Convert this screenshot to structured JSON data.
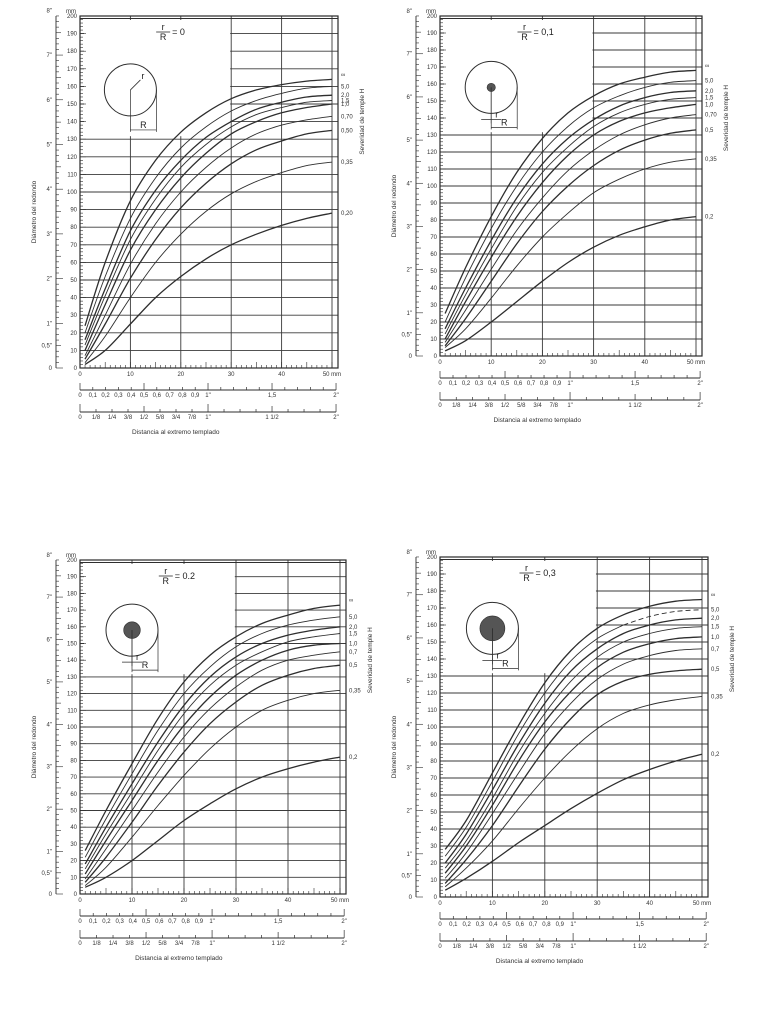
{
  "chart_data": [
    {
      "type": "line",
      "title": "r/R = 0",
      "ratio_label": "r/R = 0",
      "inset": {
        "core_radius_fraction": 0
      },
      "xlabel": "Distancia al extremo templado",
      "ylabel": "Diámetro del redondo",
      "right_label": "Severidad de temple H",
      "x_unit": "mm",
      "y_unit": "mm",
      "xlim": [
        0,
        50
      ],
      "ylim": [
        0,
        200
      ],
      "x_ticks": [
        0,
        10,
        20,
        30,
        40,
        50
      ],
      "x_tick_labels": [
        "0",
        "10",
        "20",
        "30",
        "40",
        "50 mm"
      ],
      "y_ticks": [
        0,
        10,
        20,
        30,
        40,
        50,
        60,
        70,
        80,
        90,
        100,
        110,
        120,
        130,
        140,
        150,
        160,
        170,
        180,
        190,
        200
      ],
      "y_inch_labels": [
        "0",
        "0,5\"",
        "1\"",
        "2\"",
        "3\"",
        "4\"",
        "5\"",
        "6\"",
        "7\"",
        "8\""
      ],
      "inch_decimal_scale": [
        "0",
        "0,1",
        "0,2",
        "0,3",
        "0,4",
        "0,5",
        "0,6",
        "0,7",
        "0,8",
        "0,9",
        "1\"",
        "1,5",
        "2\""
      ],
      "inch_fraction_scale": [
        "0",
        "1/8",
        "1/4",
        "3/8",
        "1/2",
        "5/8",
        "3/4",
        "7/8",
        "1\"",
        "1 1/2",
        "2\""
      ],
      "x": [
        1,
        5,
        10,
        15,
        20,
        25,
        30,
        35,
        40,
        45,
        50
      ],
      "series": [
        {
          "name": "∞",
          "values": [
            24,
            60,
            95,
            118,
            134,
            145,
            153,
            158,
            161,
            163,
            164
          ]
        },
        {
          "name": "5,0",
          "values": [
            20,
            52,
            85,
            108,
            125,
            137,
            146,
            152,
            156,
            159,
            160
          ]
        },
        {
          "name": "2,0",
          "values": [
            16,
            45,
            78,
            101,
            118,
            131,
            140,
            147,
            151,
            154,
            155
          ]
        },
        {
          "name": "1,5",
          "values": [
            13,
            41,
            73,
            96,
            114,
            127,
            137,
            144,
            148,
            151,
            152
          ]
        },
        {
          "name": "1,0",
          "values": [
            10,
            36,
            67,
            90,
            108,
            122,
            133,
            140,
            145,
            148,
            150
          ]
        },
        {
          "name": "0,70",
          "values": [
            7,
            30,
            59,
            82,
            100,
            114,
            125,
            133,
            138,
            141,
            143
          ]
        },
        {
          "name": "0,50",
          "values": [
            5,
            25,
            51,
            73,
            91,
            105,
            116,
            124,
            129,
            133,
            135
          ]
        },
        {
          "name": "0,35",
          "values": [
            3,
            18,
            40,
            60,
            76,
            89,
            99,
            106,
            111,
            115,
            117
          ]
        },
        {
          "name": "0,20",
          "values": [
            2,
            10,
            25,
            40,
            52,
            62,
            70,
            76,
            81,
            85,
            88
          ]
        }
      ]
    },
    {
      "type": "line",
      "title": "r/R = 0,1",
      "ratio_label": "r/R = 0,1",
      "inset": {
        "core_radius_fraction": 0.1
      },
      "xlabel": "Distancia al extremo templado",
      "ylabel": "Diámetro del redondo",
      "right_label": "Severidad de temple H",
      "x_unit": "mm",
      "y_unit": "mm",
      "xlim": [
        0,
        50
      ],
      "ylim": [
        0,
        200
      ],
      "x_ticks": [
        0,
        10,
        20,
        30,
        40,
        50
      ],
      "x_tick_labels": [
        "0",
        "10",
        "20",
        "30",
        "40",
        "50 mm"
      ],
      "y_ticks": [
        0,
        10,
        20,
        30,
        40,
        50,
        60,
        70,
        80,
        90,
        100,
        110,
        120,
        130,
        140,
        150,
        160,
        170,
        180,
        190,
        200
      ],
      "y_inch_labels": [
        "0",
        "0,5\"",
        "1\"",
        "2\"",
        "3\"",
        "4\"",
        "5\"",
        "6\"",
        "7\"",
        "8\""
      ],
      "inch_decimal_scale": [
        "0",
        "0,1",
        "0,2",
        "0,3",
        "0,4",
        "0,5",
        "0,6",
        "0,7",
        "0,8",
        "0,9",
        "1\"",
        "1,5",
        "2\""
      ],
      "inch_fraction_scale": [
        "0",
        "1/8",
        "1/4",
        "3/8",
        "1/2",
        "5/8",
        "3/4",
        "7/8",
        "1\"",
        "1 1/2",
        "2\""
      ],
      "x": [
        1,
        5,
        10,
        15,
        20,
        25,
        30,
        35,
        40,
        45,
        50
      ],
      "series": [
        {
          "name": "∞",
          "values": [
            25,
            52,
            82,
            108,
            128,
            143,
            153,
            160,
            164,
            167,
            168
          ]
        },
        {
          "name": "5,0",
          "values": [
            20,
            46,
            75,
            100,
            120,
            135,
            146,
            153,
            158,
            161,
            162
          ]
        },
        {
          "name": "2,0",
          "values": [
            16,
            40,
            68,
            93,
            113,
            128,
            139,
            147,
            152,
            155,
            156
          ]
        },
        {
          "name": "1,5",
          "values": [
            13,
            36,
            63,
            88,
            108,
            123,
            135,
            143,
            148,
            151,
            152
          ]
        },
        {
          "name": "1,0",
          "values": [
            10,
            32,
            58,
            82,
            102,
            118,
            130,
            138,
            143,
            146,
            148
          ]
        },
        {
          "name": "0,70",
          "values": [
            8,
            27,
            51,
            74,
            93,
            109,
            121,
            130,
            136,
            140,
            142
          ]
        },
        {
          "name": "0,5",
          "values": [
            6,
            22,
            44,
            66,
            85,
            100,
            112,
            121,
            127,
            131,
            133
          ]
        },
        {
          "name": "0,35",
          "values": [
            5,
            16,
            34,
            53,
            70,
            84,
            96,
            104,
            110,
            114,
            116
          ]
        },
        {
          "name": "0,2",
          "values": [
            3,
            9,
            20,
            32,
            44,
            55,
            64,
            71,
            76,
            80,
            82
          ]
        }
      ]
    },
    {
      "type": "line",
      "title": "r/R = 0,2",
      "ratio_label": "r/R = 0.2",
      "inset": {
        "core_radius_fraction": 0.2
      },
      "xlabel": "Distancia al extremo templado",
      "ylabel": "Diámetro del redondo",
      "right_label": "Severidad de temple H",
      "x_unit": "mm",
      "y_unit": "mm",
      "xlim": [
        0,
        50
      ],
      "ylim": [
        0,
        200
      ],
      "x_ticks": [
        0,
        10,
        20,
        30,
        40,
        50
      ],
      "x_tick_labels": [
        "0",
        "10",
        "20",
        "30",
        "40",
        "50 mm"
      ],
      "y_ticks": [
        0,
        10,
        20,
        30,
        40,
        50,
        60,
        70,
        80,
        90,
        100,
        110,
        120,
        130,
        140,
        150,
        160,
        170,
        180,
        190,
        200
      ],
      "y_inch_labels": [
        "0",
        "0,5\"",
        "1\"",
        "2\"",
        "3\"",
        "4\"",
        "5\"",
        "6\"",
        "7\"",
        "8\""
      ],
      "inch_decimal_scale": [
        "0",
        "0,1",
        "0,2",
        "0,3",
        "0,4",
        "0,5",
        "0,6",
        "0,7",
        "0,8",
        "0,9",
        "1\"",
        "1,5",
        "2\""
      ],
      "inch_fraction_scale": [
        "0",
        "1/8",
        "1/4",
        "3/8",
        "1/2",
        "5/8",
        "3/4",
        "7/8",
        "1\"",
        "1 1/2",
        "2\""
      ],
      "x": [
        1,
        5,
        10,
        15,
        20,
        25,
        30,
        35,
        40,
        45,
        50
      ],
      "series": [
        {
          "name": "∞",
          "values": [
            26,
            50,
            78,
            105,
            127,
            143,
            154,
            162,
            167,
            171,
            173
          ]
        },
        {
          "name": "5,0",
          "values": [
            22,
            45,
            72,
            98,
            120,
            136,
            148,
            156,
            161,
            164,
            166
          ]
        },
        {
          "name": "2,0",
          "values": [
            18,
            40,
            66,
            91,
            113,
            130,
            142,
            150,
            155,
            158,
            160
          ]
        },
        {
          "name": "1,5",
          "values": [
            15,
            36,
            61,
            86,
            108,
            125,
            137,
            145,
            151,
            154,
            156
          ]
        },
        {
          "name": "1,0",
          "values": [
            12,
            32,
            56,
            80,
            101,
            118,
            131,
            140,
            146,
            149,
            150
          ]
        },
        {
          "name": "0,7",
          "values": [
            9,
            27,
            50,
            73,
            94,
            111,
            124,
            134,
            140,
            143,
            145
          ]
        },
        {
          "name": "0,5",
          "values": [
            7,
            22,
            43,
            65,
            85,
            102,
            115,
            125,
            131,
            135,
            137
          ]
        },
        {
          "name": "0,35",
          "values": [
            5,
            16,
            34,
            53,
            71,
            87,
            100,
            110,
            116,
            120,
            122
          ]
        },
        {
          "name": "0,2",
          "values": [
            4,
            10,
            20,
            32,
            44,
            54,
            63,
            70,
            75,
            79,
            82
          ]
        }
      ]
    },
    {
      "type": "line",
      "title": "r/R = 0,3",
      "ratio_label": "r/R = 0,3",
      "inset": {
        "core_radius_fraction": 0.3
      },
      "xlabel": "Distancia al extremo templado",
      "ylabel": "Diámetro del redondo",
      "right_label": "Severidad de temple H",
      "x_unit": "mm",
      "y_unit": "mm",
      "xlim": [
        0,
        50
      ],
      "ylim": [
        0,
        200
      ],
      "x_ticks": [
        0,
        10,
        20,
        30,
        40,
        50
      ],
      "x_tick_labels": [
        "0",
        "10",
        "20",
        "30",
        "40",
        "50 mm"
      ],
      "y_ticks": [
        0,
        10,
        20,
        30,
        40,
        50,
        60,
        70,
        80,
        90,
        100,
        110,
        120,
        130,
        140,
        150,
        160,
        170,
        180,
        190,
        200
      ],
      "y_inch_labels": [
        "0",
        "0,5\"",
        "1\"",
        "2\"",
        "3\"",
        "4\"",
        "5\"",
        "6\"",
        "7\"",
        "8\""
      ],
      "inch_decimal_scale": [
        "0",
        "0,1",
        "0,2",
        "0,3",
        "0,4",
        "0,5",
        "0,6",
        "0,7",
        "0,8",
        "0,9",
        "1\"",
        "1,5",
        "2\""
      ],
      "inch_fraction_scale": [
        "0",
        "1/8",
        "1/4",
        "3/8",
        "1/2",
        "5/8",
        "3/4",
        "7/8",
        "1\"",
        "1 1/2",
        "2\""
      ],
      "x": [
        1,
        5,
        10,
        15,
        20,
        25,
        30,
        35,
        40,
        45,
        50
      ],
      "series": [
        {
          "name": "∞",
          "values": [
            28,
            45,
            73,
            101,
            126,
            145,
            158,
            166,
            171,
            174,
            175
          ]
        },
        {
          "name": "5,0",
          "values": [
            24,
            41,
            68,
            96,
            120,
            139,
            152,
            160,
            165,
            168,
            169
          ],
          "dashed_after": 35
        },
        {
          "name": "2,0",
          "values": [
            20,
            37,
            63,
            90,
            114,
            133,
            146,
            155,
            160,
            163,
            164
          ]
        },
        {
          "name": "1,5",
          "values": [
            17,
            33,
            58,
            85,
            108,
            127,
            141,
            150,
            155,
            158,
            159
          ]
        },
        {
          "name": "1,0",
          "values": [
            14,
            30,
            54,
            80,
            103,
            121,
            135,
            144,
            149,
            152,
            153
          ]
        },
        {
          "name": "0,7",
          "values": [
            11,
            26,
            49,
            73,
            96,
            114,
            128,
            137,
            142,
            145,
            146
          ]
        },
        {
          "name": "0,5",
          "values": [
            8,
            22,
            42,
            65,
            87,
            105,
            119,
            127,
            131,
            133,
            134
          ]
        },
        {
          "name": "0,35",
          "values": [
            6,
            17,
            33,
            52,
            70,
            86,
            99,
            108,
            113,
            116,
            118
          ]
        },
        {
          "name": "0,2",
          "values": [
            4,
            11,
            21,
            32,
            42,
            52,
            61,
            69,
            75,
            80,
            84
          ]
        }
      ]
    }
  ],
  "panels": [
    {
      "ratio_label": "r/R = 0",
      "xlabel": "Distancia al extremo templado",
      "ylabel": "Diámetro del redondo",
      "right_label": "Severidad de temple H"
    },
    {
      "ratio_label": "r/R = 0,1",
      "xlabel": "Distancia al extremo templado",
      "ylabel": "Diámetro del redondo",
      "right_label": "Severidad de temple H"
    },
    {
      "ratio_label": "r/R = 0.2",
      "xlabel": "Distancia al extremo templado",
      "ylabel": "Diámetro del redondo",
      "right_label": "Severidad de temple H"
    },
    {
      "ratio_label": "r/R = 0,3",
      "xlabel": "Distancia al extremo templado",
      "ylabel": "Diámetro del redondo",
      "right_label": "Severidad de temple H"
    }
  ],
  "style": {
    "ink": "#2e2e2e",
    "grid": "#3a3a3a",
    "paper": "#ffffff",
    "core_fill": "#555555"
  }
}
